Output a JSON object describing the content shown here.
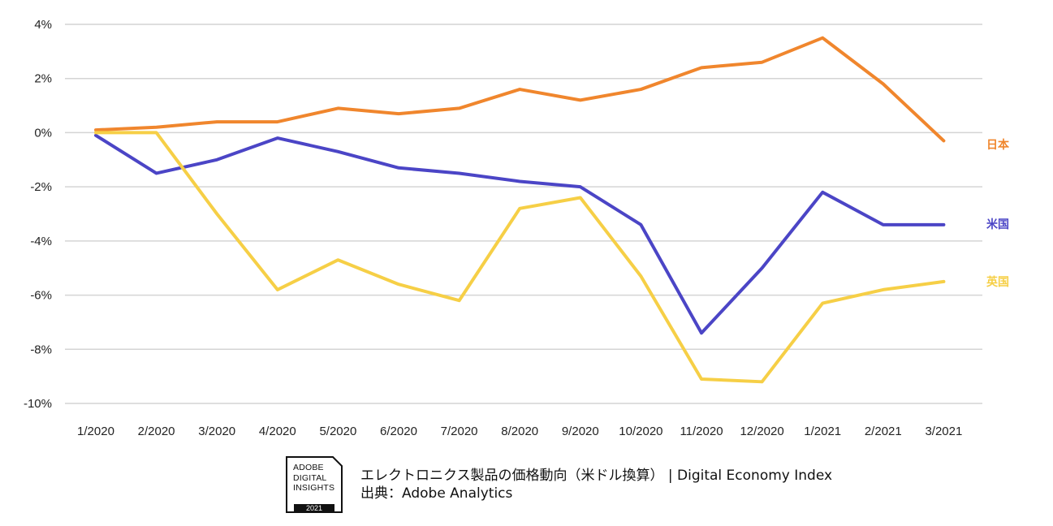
{
  "chart_data": {
    "type": "line",
    "categories": [
      "1/2020",
      "2/2020",
      "3/2020",
      "4/2020",
      "5/2020",
      "6/2020",
      "7/2020",
      "8/2020",
      "9/2020",
      "10/2020",
      "11/2020",
      "12/2020",
      "1/2021",
      "2/2021",
      "3/2021"
    ],
    "series": [
      {
        "name": "日本",
        "color": "#f0862d",
        "values": [
          0.1,
          0.2,
          0.4,
          0.4,
          0.9,
          0.7,
          0.9,
          1.6,
          1.2,
          1.6,
          2.4,
          2.6,
          3.5,
          1.8,
          -0.3
        ]
      },
      {
        "name": "米国",
        "color": "#4b45c6",
        "values": [
          -0.1,
          -1.5,
          -1.0,
          -0.2,
          -0.7,
          -1.3,
          -1.5,
          -1.8,
          -2.0,
          -3.4,
          -7.4,
          -5.0,
          -2.2,
          -3.4,
          -3.4
        ]
      },
      {
        "name": "英国",
        "color": "#f6cf46",
        "values": [
          0.0,
          0.0,
          -3.0,
          -5.8,
          -4.7,
          -5.6,
          -6.2,
          -2.8,
          -2.4,
          -5.3,
          -9.1,
          -9.2,
          -6.3,
          -5.8,
          -5.5
        ]
      }
    ],
    "ylim": [
      -10,
      4
    ],
    "yticks": [
      "4%",
      "2%",
      "0%",
      "-2%",
      "-4%",
      "-6%",
      "-8%",
      "-10%"
    ],
    "ytick_values": [
      4,
      2,
      0,
      -2,
      -4,
      -6,
      -8,
      -10
    ],
    "grid": true,
    "legend": "inline labels at right end of each line"
  },
  "footer": {
    "badge_lines": [
      "ADOBE",
      "DIGITAL",
      "INSIGHTS"
    ],
    "badge_year": "2021",
    "caption_line1": "エレクトロニクス製品の価格動向（米ドル換算） | Digital Economy Index",
    "caption_line2": "出典：Adobe Analytics"
  }
}
